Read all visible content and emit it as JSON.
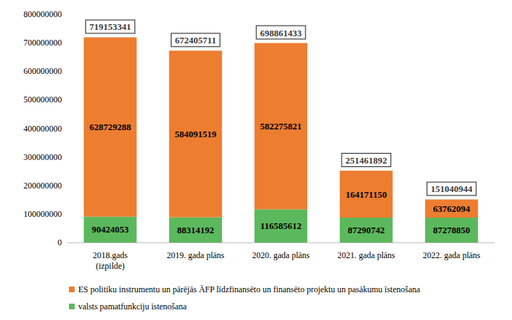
{
  "chart_data": {
    "type": "bar",
    "stacked": true,
    "data_labels": true,
    "grid": false,
    "legend": "bottom",
    "categories": [
      "2018.gads\n(izpilde)",
      "2019. gada plāns",
      "2020. gada plāns",
      "2021. gada plāns",
      "2022. gada plāns"
    ],
    "series": [
      {
        "name": "valsts pamatfunkciju īstenošana",
        "color": "#5cb85c",
        "values": [
          90424053,
          88314192,
          116585612,
          87290742,
          87278850
        ]
      },
      {
        "name": "ES politiku instrumentu un pārējās ĀFP līdzfinansēto un finansēto projektu un pasākumu īstenošana",
        "color": "#ed7d31",
        "values": [
          628729288,
          584091519,
          582275821,
          164171150,
          63762094
        ]
      }
    ],
    "totals": [
      719153341,
      672405711,
      698861433,
      251461892,
      151040944
    ],
    "ylim": [
      0,
      800000000
    ],
    "yticks": [
      0,
      100000000,
      200000000,
      300000000,
      400000000,
      500000000,
      600000000,
      700000000,
      800000000
    ]
  }
}
